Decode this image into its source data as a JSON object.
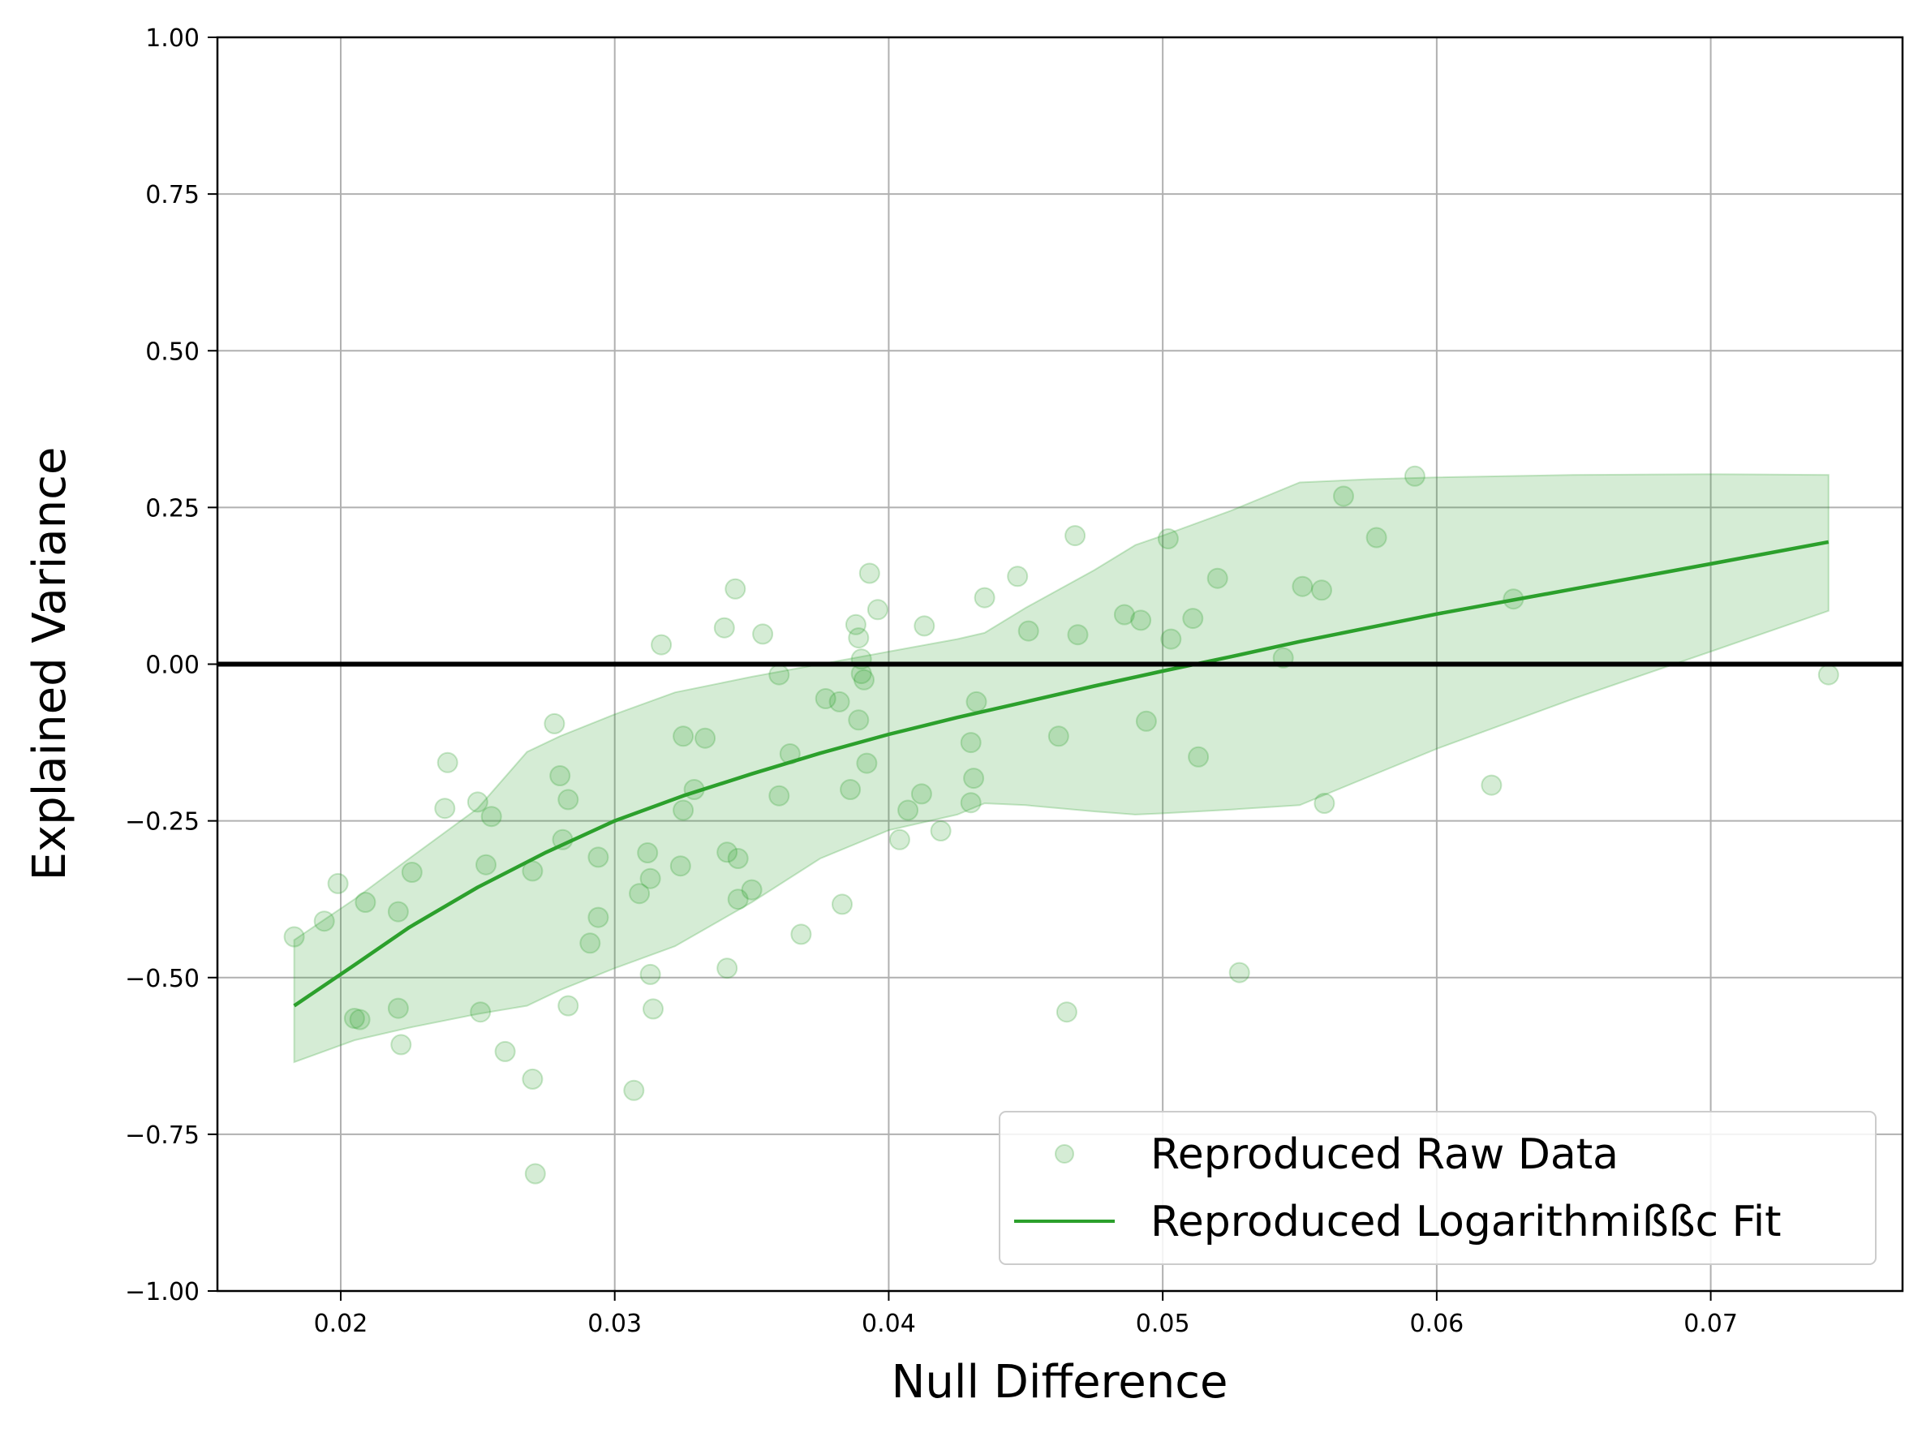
{
  "chart_data": {
    "type": "scatter",
    "title": "",
    "xlabel": "Null Difference",
    "ylabel": "Explained Variance",
    "xlim": [
      0.0155,
      0.077
    ],
    "ylim": [
      -1.0,
      1.0
    ],
    "x_ticks": [
      {
        "value": 0.02,
        "label": "0.02"
      },
      {
        "value": 0.03,
        "label": "0.03"
      },
      {
        "value": 0.04,
        "label": "0.04"
      },
      {
        "value": 0.05,
        "label": "0.05"
      },
      {
        "value": 0.06,
        "label": "0.06"
      },
      {
        "value": 0.07,
        "label": "0.07"
      }
    ],
    "y_ticks": [
      {
        "value": 1.0,
        "label": "1.00"
      },
      {
        "value": 0.75,
        "label": "0.75"
      },
      {
        "value": 0.5,
        "label": "0.50"
      },
      {
        "value": 0.25,
        "label": "0.25"
      },
      {
        "value": 0.0,
        "label": "0.00"
      },
      {
        "value": -0.25,
        "label": "−0.25"
      },
      {
        "value": -0.5,
        "label": "−0.50"
      },
      {
        "value": -0.75,
        "label": "−0.75"
      },
      {
        "value": -1.0,
        "label": "−1.00"
      }
    ],
    "grid": true,
    "legend_position": "bottom-right",
    "reference_line": {
      "y": 0.0,
      "color": "#000000"
    },
    "colors": {
      "points": "#2ca02c",
      "fit": "#2ca02c",
      "band": "#2ca02c"
    },
    "series": [
      {
        "name": "Reproduced Raw Data",
        "type": "scatter",
        "points": [
          [
            0.0183,
            -0.435
          ],
          [
            0.0194,
            -0.41
          ],
          [
            0.0199,
            -0.35
          ],
          [
            0.0205,
            -0.565
          ],
          [
            0.0207,
            -0.567
          ],
          [
            0.0209,
            -0.38
          ],
          [
            0.0221,
            -0.395
          ],
          [
            0.0221,
            -0.549
          ],
          [
            0.0222,
            -0.607
          ],
          [
            0.0226,
            -0.332
          ],
          [
            0.0238,
            -0.23
          ],
          [
            0.0239,
            -0.157
          ],
          [
            0.025,
            -0.22
          ],
          [
            0.0251,
            -0.555
          ],
          [
            0.0253,
            -0.32
          ],
          [
            0.0255,
            -0.243
          ],
          [
            0.026,
            -0.618
          ],
          [
            0.027,
            -0.662
          ],
          [
            0.027,
            -0.33
          ],
          [
            0.0271,
            -0.813
          ],
          [
            0.0278,
            -0.095
          ],
          [
            0.028,
            -0.178
          ],
          [
            0.0281,
            -0.28
          ],
          [
            0.0283,
            -0.545
          ],
          [
            0.0283,
            -0.216
          ],
          [
            0.0291,
            -0.445
          ],
          [
            0.0294,
            -0.308
          ],
          [
            0.0294,
            -0.404
          ],
          [
            0.0307,
            -0.68
          ],
          [
            0.0309,
            -0.366
          ],
          [
            0.0312,
            -0.301
          ],
          [
            0.0313,
            -0.342
          ],
          [
            0.0313,
            -0.495
          ],
          [
            0.0314,
            -0.55
          ],
          [
            0.0317,
            0.031
          ],
          [
            0.0324,
            -0.322
          ],
          [
            0.0325,
            -0.233
          ],
          [
            0.0325,
            -0.115
          ],
          [
            0.0329,
            -0.2
          ],
          [
            0.0333,
            -0.118
          ],
          [
            0.034,
            0.058
          ],
          [
            0.0341,
            -0.485
          ],
          [
            0.0341,
            -0.3
          ],
          [
            0.0344,
            0.12
          ],
          [
            0.0345,
            -0.375
          ],
          [
            0.0345,
            -0.31
          ],
          [
            0.035,
            -0.36
          ],
          [
            0.0354,
            0.048
          ],
          [
            0.036,
            -0.017
          ],
          [
            0.036,
            -0.21
          ],
          [
            0.0364,
            -0.143
          ],
          [
            0.0368,
            -0.431
          ],
          [
            0.0377,
            -0.055
          ],
          [
            0.0382,
            -0.06
          ],
          [
            0.0383,
            -0.383
          ],
          [
            0.0386,
            -0.2
          ],
          [
            0.0388,
            0.063
          ],
          [
            0.0389,
            -0.089
          ],
          [
            0.0389,
            0.042
          ],
          [
            0.039,
            0.008
          ],
          [
            0.039,
            -0.015
          ],
          [
            0.0391,
            -0.025
          ],
          [
            0.0392,
            -0.158
          ],
          [
            0.0393,
            0.145
          ],
          [
            0.0396,
            0.087
          ],
          [
            0.0404,
            -0.28
          ],
          [
            0.0407,
            -0.233
          ],
          [
            0.0412,
            -0.207
          ],
          [
            0.0413,
            0.061
          ],
          [
            0.0419,
            -0.266
          ],
          [
            0.043,
            -0.221
          ],
          [
            0.043,
            -0.125
          ],
          [
            0.0431,
            -0.182
          ],
          [
            0.0432,
            -0.06
          ],
          [
            0.0435,
            0.106
          ],
          [
            0.0447,
            0.14
          ],
          [
            0.0451,
            0.053
          ],
          [
            0.0462,
            -0.115
          ],
          [
            0.0465,
            -0.555
          ],
          [
            0.0468,
            0.205
          ],
          [
            0.0469,
            0.047
          ],
          [
            0.0486,
            0.079
          ],
          [
            0.0492,
            0.07
          ],
          [
            0.0494,
            -0.091
          ],
          [
            0.0502,
            0.2
          ],
          [
            0.0503,
            0.04
          ],
          [
            0.0511,
            0.073
          ],
          [
            0.0513,
            -0.148
          ],
          [
            0.052,
            0.137
          ],
          [
            0.0528,
            -0.492
          ],
          [
            0.0544,
            0.01
          ],
          [
            0.0551,
            0.124
          ],
          [
            0.0558,
            0.118
          ],
          [
            0.0559,
            -0.222
          ],
          [
            0.0566,
            0.268
          ],
          [
            0.0578,
            0.202
          ],
          [
            0.0592,
            0.3
          ],
          [
            0.062,
            -0.193
          ],
          [
            0.0628,
            0.104
          ],
          [
            0.0743,
            -0.017
          ]
        ]
      },
      {
        "name": "Reproduced Logarithmißßc Fit",
        "type": "line",
        "x": [
          0.0183,
          0.0205,
          0.0225,
          0.025,
          0.0275,
          0.03,
          0.0325,
          0.035,
          0.0375,
          0.04,
          0.0425,
          0.045,
          0.0475,
          0.05,
          0.0525,
          0.055,
          0.0575,
          0.06,
          0.065,
          0.07,
          0.0743
        ],
        "y": [
          -0.545,
          -0.48,
          -0.42,
          -0.356,
          -0.3,
          -0.25,
          -0.21,
          -0.175,
          -0.142,
          -0.112,
          -0.085,
          -0.06,
          -0.035,
          -0.011,
          0.012,
          0.036,
          0.058,
          0.08,
          0.12,
          0.16,
          0.195
        ]
      }
    ],
    "band": {
      "name": "",
      "x": [
        0.0183,
        0.0205,
        0.0225,
        0.025,
        0.0268,
        0.028,
        0.03,
        0.0322,
        0.035,
        0.0375,
        0.04,
        0.0425,
        0.0435,
        0.045,
        0.0475,
        0.049,
        0.05,
        0.0525,
        0.055,
        0.0575,
        0.06,
        0.065,
        0.07,
        0.0743
      ],
      "upper": [
        -0.44,
        -0.375,
        -0.31,
        -0.23,
        -0.14,
        -0.115,
        -0.08,
        -0.045,
        -0.02,
        0.0,
        0.02,
        0.04,
        0.05,
        0.09,
        0.15,
        0.19,
        0.205,
        0.245,
        0.29,
        0.295,
        0.298,
        0.302,
        0.303,
        0.302
      ],
      "lower": [
        -0.635,
        -0.6,
        -0.58,
        -0.558,
        -0.545,
        -0.52,
        -0.485,
        -0.45,
        -0.38,
        -0.31,
        -0.265,
        -0.24,
        -0.222,
        -0.225,
        -0.235,
        -0.24,
        -0.238,
        -0.232,
        -0.225,
        -0.18,
        -0.135,
        -0.055,
        0.02,
        0.085
      ]
    }
  }
}
